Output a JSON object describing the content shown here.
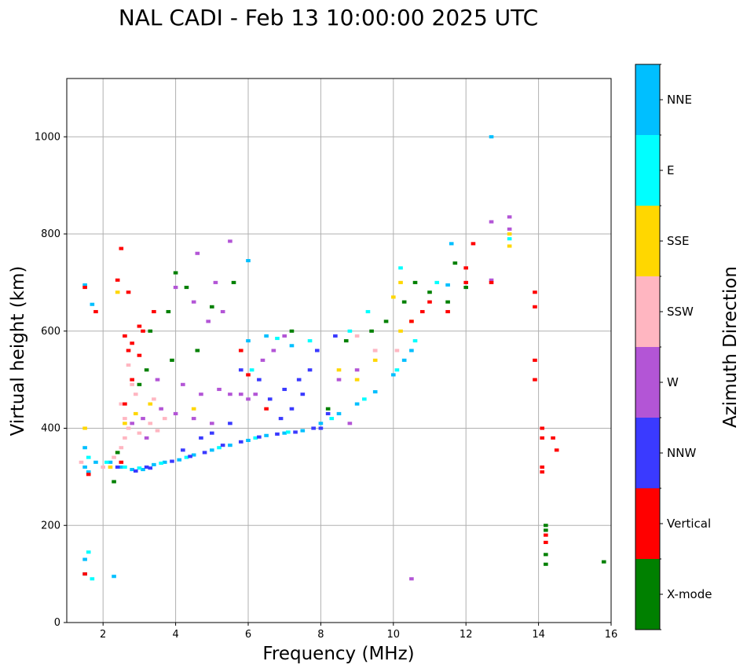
{
  "chart_data": {
    "type": "scatter",
    "title": "NAL CADI - Feb 13 10:00:00 2025 UTC",
    "xlabel": "Frequency (MHz)",
    "ylabel": "Virtual height (km)",
    "xlim": [
      1,
      16
    ],
    "ylim": [
      0,
      1120
    ],
    "xticks": [
      2,
      4,
      6,
      8,
      10,
      12,
      14,
      16
    ],
    "yticks": [
      0,
      200,
      400,
      600,
      800,
      1000
    ],
    "grid": true,
    "colorbar": {
      "label": "Azimuth Direction",
      "categories": [
        {
          "name": "X-mode",
          "color": "#008000"
        },
        {
          "name": "Vertical",
          "color": "#ff0000"
        },
        {
          "name": "NNW",
          "color": "#3a3aff"
        },
        {
          "name": "W",
          "color": "#b355d6"
        },
        {
          "name": "SSW",
          "color": "#ffb6c1"
        },
        {
          "name": "SSE",
          "color": "#ffd700"
        },
        {
          "name": "E",
          "color": "#00ffff"
        },
        {
          "name": "NNE",
          "color": "#00bfff"
        }
      ]
    },
    "series": [
      {
        "name": "NNE",
        "points": [
          [
            1.5,
            320
          ],
          [
            1.6,
            310
          ],
          [
            1.5,
            360
          ],
          [
            1.8,
            330
          ],
          [
            2.2,
            330
          ],
          [
            2.5,
            320
          ],
          [
            2.8,
            315
          ],
          [
            3.1,
            315
          ],
          [
            3.4,
            325
          ],
          [
            3.7,
            330
          ],
          [
            4.1,
            335
          ],
          [
            4.5,
            345
          ],
          [
            5.0,
            355
          ],
          [
            5.5,
            365
          ],
          [
            6.0,
            375
          ],
          [
            6.5,
            385
          ],
          [
            7.0,
            390
          ],
          [
            7.5,
            395
          ],
          [
            8.0,
            410
          ],
          [
            8.5,
            430
          ],
          [
            9.0,
            450
          ],
          [
            9.5,
            475
          ],
          [
            10.0,
            510
          ],
          [
            10.3,
            540
          ],
          [
            10.5,
            560
          ],
          [
            6.0,
            580
          ],
          [
            6.5,
            590
          ],
          [
            7.2,
            570
          ],
          [
            1.5,
            130
          ],
          [
            1.5,
            100
          ],
          [
            2.3,
            95
          ],
          [
            12.7,
            1000
          ],
          [
            1.7,
            655
          ],
          [
            6.0,
            745
          ],
          [
            1.5,
            695
          ],
          [
            11.5,
            695
          ],
          [
            11.6,
            780
          ]
        ]
      },
      {
        "name": "E",
        "points": [
          [
            1.6,
            340
          ],
          [
            2.1,
            330
          ],
          [
            2.6,
            320
          ],
          [
            3.0,
            318
          ],
          [
            3.6,
            328
          ],
          [
            4.3,
            340
          ],
          [
            5.2,
            360
          ],
          [
            6.2,
            380
          ],
          [
            7.1,
            392
          ],
          [
            8.3,
            420
          ],
          [
            9.2,
            460
          ],
          [
            10.1,
            520
          ],
          [
            10.6,
            580
          ],
          [
            6.8,
            585
          ],
          [
            7.7,
            580
          ],
          [
            8.8,
            600
          ],
          [
            9.3,
            640
          ],
          [
            10.2,
            730
          ],
          [
            1.6,
            145
          ],
          [
            1.7,
            90
          ],
          [
            13.2,
            790
          ],
          [
            11.2,
            700
          ],
          [
            6.1,
            520
          ]
        ]
      },
      {
        "name": "NNW",
        "points": [
          [
            2.4,
            320
          ],
          [
            2.9,
            312
          ],
          [
            3.3,
            318
          ],
          [
            3.9,
            332
          ],
          [
            4.4,
            342
          ],
          [
            4.8,
            350
          ],
          [
            5.3,
            365
          ],
          [
            5.8,
            372
          ],
          [
            6.3,
            382
          ],
          [
            6.8,
            388
          ],
          [
            7.3,
            392
          ],
          [
            7.8,
            400
          ],
          [
            8.2,
            430
          ],
          [
            7.5,
            470
          ],
          [
            7.2,
            440
          ],
          [
            6.6,
            460
          ],
          [
            7.0,
            480
          ],
          [
            7.4,
            500
          ],
          [
            5.8,
            520
          ],
          [
            6.3,
            500
          ],
          [
            6.9,
            420
          ],
          [
            7.9,
            560
          ],
          [
            8.4,
            590
          ],
          [
            4.2,
            355
          ],
          [
            5.0,
            390
          ],
          [
            5.5,
            410
          ],
          [
            4.7,
            380
          ],
          [
            3.2,
            320
          ],
          [
            7.7,
            520
          ],
          [
            8.0,
            400
          ]
        ]
      },
      {
        "name": "W",
        "points": [
          [
            2.8,
            410
          ],
          [
            3.1,
            420
          ],
          [
            3.6,
            440
          ],
          [
            4.0,
            430
          ],
          [
            4.5,
            420
          ],
          [
            5.0,
            410
          ],
          [
            5.5,
            470
          ],
          [
            6.0,
            460
          ],
          [
            6.4,
            540
          ],
          [
            6.7,
            560
          ],
          [
            7.0,
            590
          ],
          [
            5.8,
            470
          ],
          [
            5.2,
            480
          ],
          [
            4.7,
            470
          ],
          [
            4.2,
            490
          ],
          [
            4.5,
            660
          ],
          [
            4.9,
            620
          ],
          [
            5.3,
            640
          ],
          [
            5.1,
            700
          ],
          [
            4.6,
            760
          ],
          [
            5.5,
            785
          ],
          [
            4.0,
            690
          ],
          [
            8.5,
            500
          ],
          [
            9.0,
            520
          ],
          [
            9.5,
            560
          ],
          [
            8.8,
            410
          ],
          [
            10.5,
            90
          ],
          [
            12.7,
            825
          ],
          [
            12.7,
            705
          ],
          [
            13.2,
            835
          ],
          [
            13.2,
            810
          ],
          [
            3.5,
            500
          ],
          [
            3.2,
            380
          ],
          [
            6.2,
            470
          ]
        ]
      },
      {
        "name": "SSW",
        "points": [
          [
            2.3,
            340
          ],
          [
            2.5,
            360
          ],
          [
            2.6,
            380
          ],
          [
            2.7,
            400
          ],
          [
            2.6,
            420
          ],
          [
            2.5,
            450
          ],
          [
            2.9,
            470
          ],
          [
            3.0,
            390
          ],
          [
            3.3,
            410
          ],
          [
            3.5,
            395
          ],
          [
            2.8,
            490
          ],
          [
            2.7,
            530
          ],
          [
            3.4,
            460
          ],
          [
            3.7,
            420
          ],
          [
            1.4,
            330
          ],
          [
            2.0,
            320
          ],
          [
            9.0,
            590
          ],
          [
            9.5,
            560
          ],
          [
            10.1,
            560
          ]
        ]
      },
      {
        "name": "SSE",
        "points": [
          [
            2.2,
            320
          ],
          [
            2.4,
            350
          ],
          [
            2.6,
            410
          ],
          [
            2.9,
            430
          ],
          [
            3.3,
            450
          ],
          [
            1.5,
            400
          ],
          [
            8.5,
            520
          ],
          [
            9.0,
            500
          ],
          [
            9.5,
            540
          ],
          [
            10.2,
            600
          ],
          [
            10.5,
            620
          ],
          [
            10.0,
            670
          ],
          [
            10.2,
            700
          ],
          [
            13.2,
            775
          ],
          [
            13.2,
            800
          ],
          [
            4.5,
            440
          ],
          [
            2.4,
            680
          ]
        ]
      },
      {
        "name": "Vertical",
        "points": [
          [
            1.6,
            305
          ],
          [
            2.5,
            330
          ],
          [
            2.6,
            450
          ],
          [
            2.8,
            500
          ],
          [
            2.7,
            560
          ],
          [
            3.0,
            550
          ],
          [
            3.1,
            600
          ],
          [
            2.6,
            590
          ],
          [
            3.0,
            610
          ],
          [
            2.8,
            575
          ],
          [
            3.4,
            640
          ],
          [
            2.4,
            705
          ],
          [
            2.7,
            680
          ],
          [
            2.5,
            770
          ],
          [
            1.5,
            690
          ],
          [
            1.5,
            100
          ],
          [
            1.8,
            640
          ],
          [
            6.0,
            510
          ],
          [
            6.5,
            440
          ],
          [
            5.8,
            560
          ],
          [
            10.5,
            620
          ],
          [
            10.8,
            640
          ],
          [
            11.0,
            660
          ],
          [
            11.5,
            640
          ],
          [
            12.0,
            700
          ],
          [
            12.0,
            730
          ],
          [
            12.2,
            780
          ],
          [
            12.7,
            700
          ],
          [
            13.9,
            650
          ],
          [
            13.9,
            680
          ],
          [
            13.9,
            500
          ],
          [
            13.9,
            540
          ],
          [
            14.1,
            400
          ],
          [
            14.1,
            380
          ],
          [
            14.4,
            380
          ],
          [
            14.5,
            355
          ],
          [
            14.1,
            320
          ],
          [
            14.1,
            310
          ],
          [
            14.2,
            180
          ],
          [
            14.2,
            165
          ]
        ]
      },
      {
        "name": "X-mode",
        "points": [
          [
            2.4,
            350
          ],
          [
            3.0,
            490
          ],
          [
            3.2,
            520
          ],
          [
            3.9,
            540
          ],
          [
            3.8,
            640
          ],
          [
            4.0,
            720
          ],
          [
            4.3,
            690
          ],
          [
            5.0,
            650
          ],
          [
            5.6,
            700
          ],
          [
            7.2,
            600
          ],
          [
            8.7,
            580
          ],
          [
            9.4,
            600
          ],
          [
            9.8,
            620
          ],
          [
            10.3,
            660
          ],
          [
            10.6,
            700
          ],
          [
            11.0,
            680
          ],
          [
            11.5,
            660
          ],
          [
            11.7,
            740
          ],
          [
            12.0,
            690
          ],
          [
            14.2,
            200
          ],
          [
            14.2,
            190
          ],
          [
            14.2,
            140
          ],
          [
            14.2,
            120
          ],
          [
            15.8,
            125
          ],
          [
            2.3,
            290
          ],
          [
            8.2,
            440
          ],
          [
            3.3,
            600
          ],
          [
            4.6,
            560
          ]
        ]
      }
    ]
  }
}
